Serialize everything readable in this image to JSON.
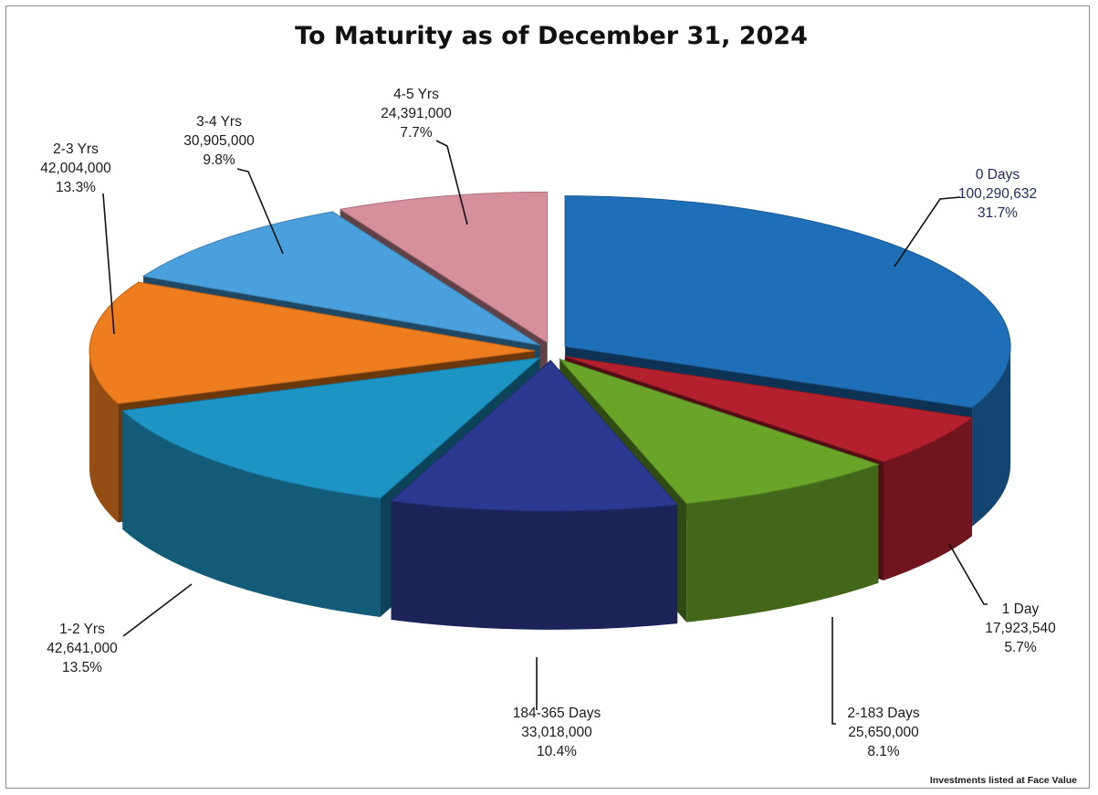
{
  "chart_data": {
    "type": "pie",
    "title": "To Maturity as of December 31, 2024",
    "footnote": "Investments listed at Face Value",
    "slices": [
      {
        "label": "0 Days",
        "value": 100290632,
        "value_text": "100,290,632",
        "pct": "31.7%",
        "color": "#1f6fb8"
      },
      {
        "label": "1 Day",
        "value": 17923540,
        "value_text": "17,923,540",
        "pct": "5.7%",
        "color": "#b5202e"
      },
      {
        "label": "2-183 Days",
        "value": 25650000,
        "value_text": "25,650,000",
        "pct": "8.1%",
        "color": "#6aa52a"
      },
      {
        "label": "184-365 Days",
        "value": 33018000,
        "value_text": "33,018,000",
        "pct": "10.4%",
        "color": "#2b3990"
      },
      {
        "label": "1-2 Yrs",
        "value": 42641000,
        "value_text": "42,641,000",
        "pct": "13.5%",
        "color": "#1d94c4"
      },
      {
        "label": "2-3 Yrs",
        "value": 42004000,
        "value_text": "42,004,000",
        "pct": "13.3%",
        "color": "#ee7d1f"
      },
      {
        "label": "3-4 Yrs",
        "value": 30905000,
        "value_text": "30,905,000",
        "pct": "9.8%",
        "color": "#4aa0dd"
      },
      {
        "label": "4-5 Yrs",
        "value": 24391000,
        "value_text": "24,391,000",
        "pct": "7.7%",
        "color": "#d6909c"
      }
    ]
  }
}
